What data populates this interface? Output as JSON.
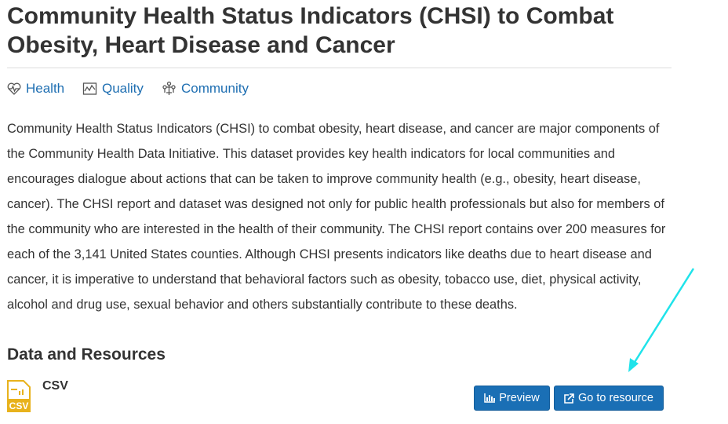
{
  "header": {
    "title": "Community Health Status Indicators (CHSI) to Combat Obesity, Heart Disease and Cancer"
  },
  "tags": [
    "Health",
    "Quality",
    "Community"
  ],
  "description": "Community Health Status Indicators (CHSI) to combat obesity, heart disease, and cancer are major components of the Community Health Data Initiative. This dataset provides key health indicators for local communities and encourages dialogue about actions that can be taken to improve community health (e.g., obesity, heart disease, cancer). The CHSI report and dataset was designed not only for public health professionals but also for members of the community who are interested in the health of their community. The CHSI report contains over 200 measures for each of the 3,141 United States counties. Although CHSI presents indicators like deaths due to heart disease and cancer, it is imperative to understand that behavioral factors such as obesity, tobacco use, diet, physical activity, alcohol and drug use, sexual behavior and others substantially contribute to these deaths.",
  "resources_section": {
    "heading": "Data and Resources",
    "resources": [
      {
        "icon_label": "CSV",
        "name": "CSV",
        "buttons": [
          "Preview",
          "Go to resource"
        ]
      }
    ]
  }
}
